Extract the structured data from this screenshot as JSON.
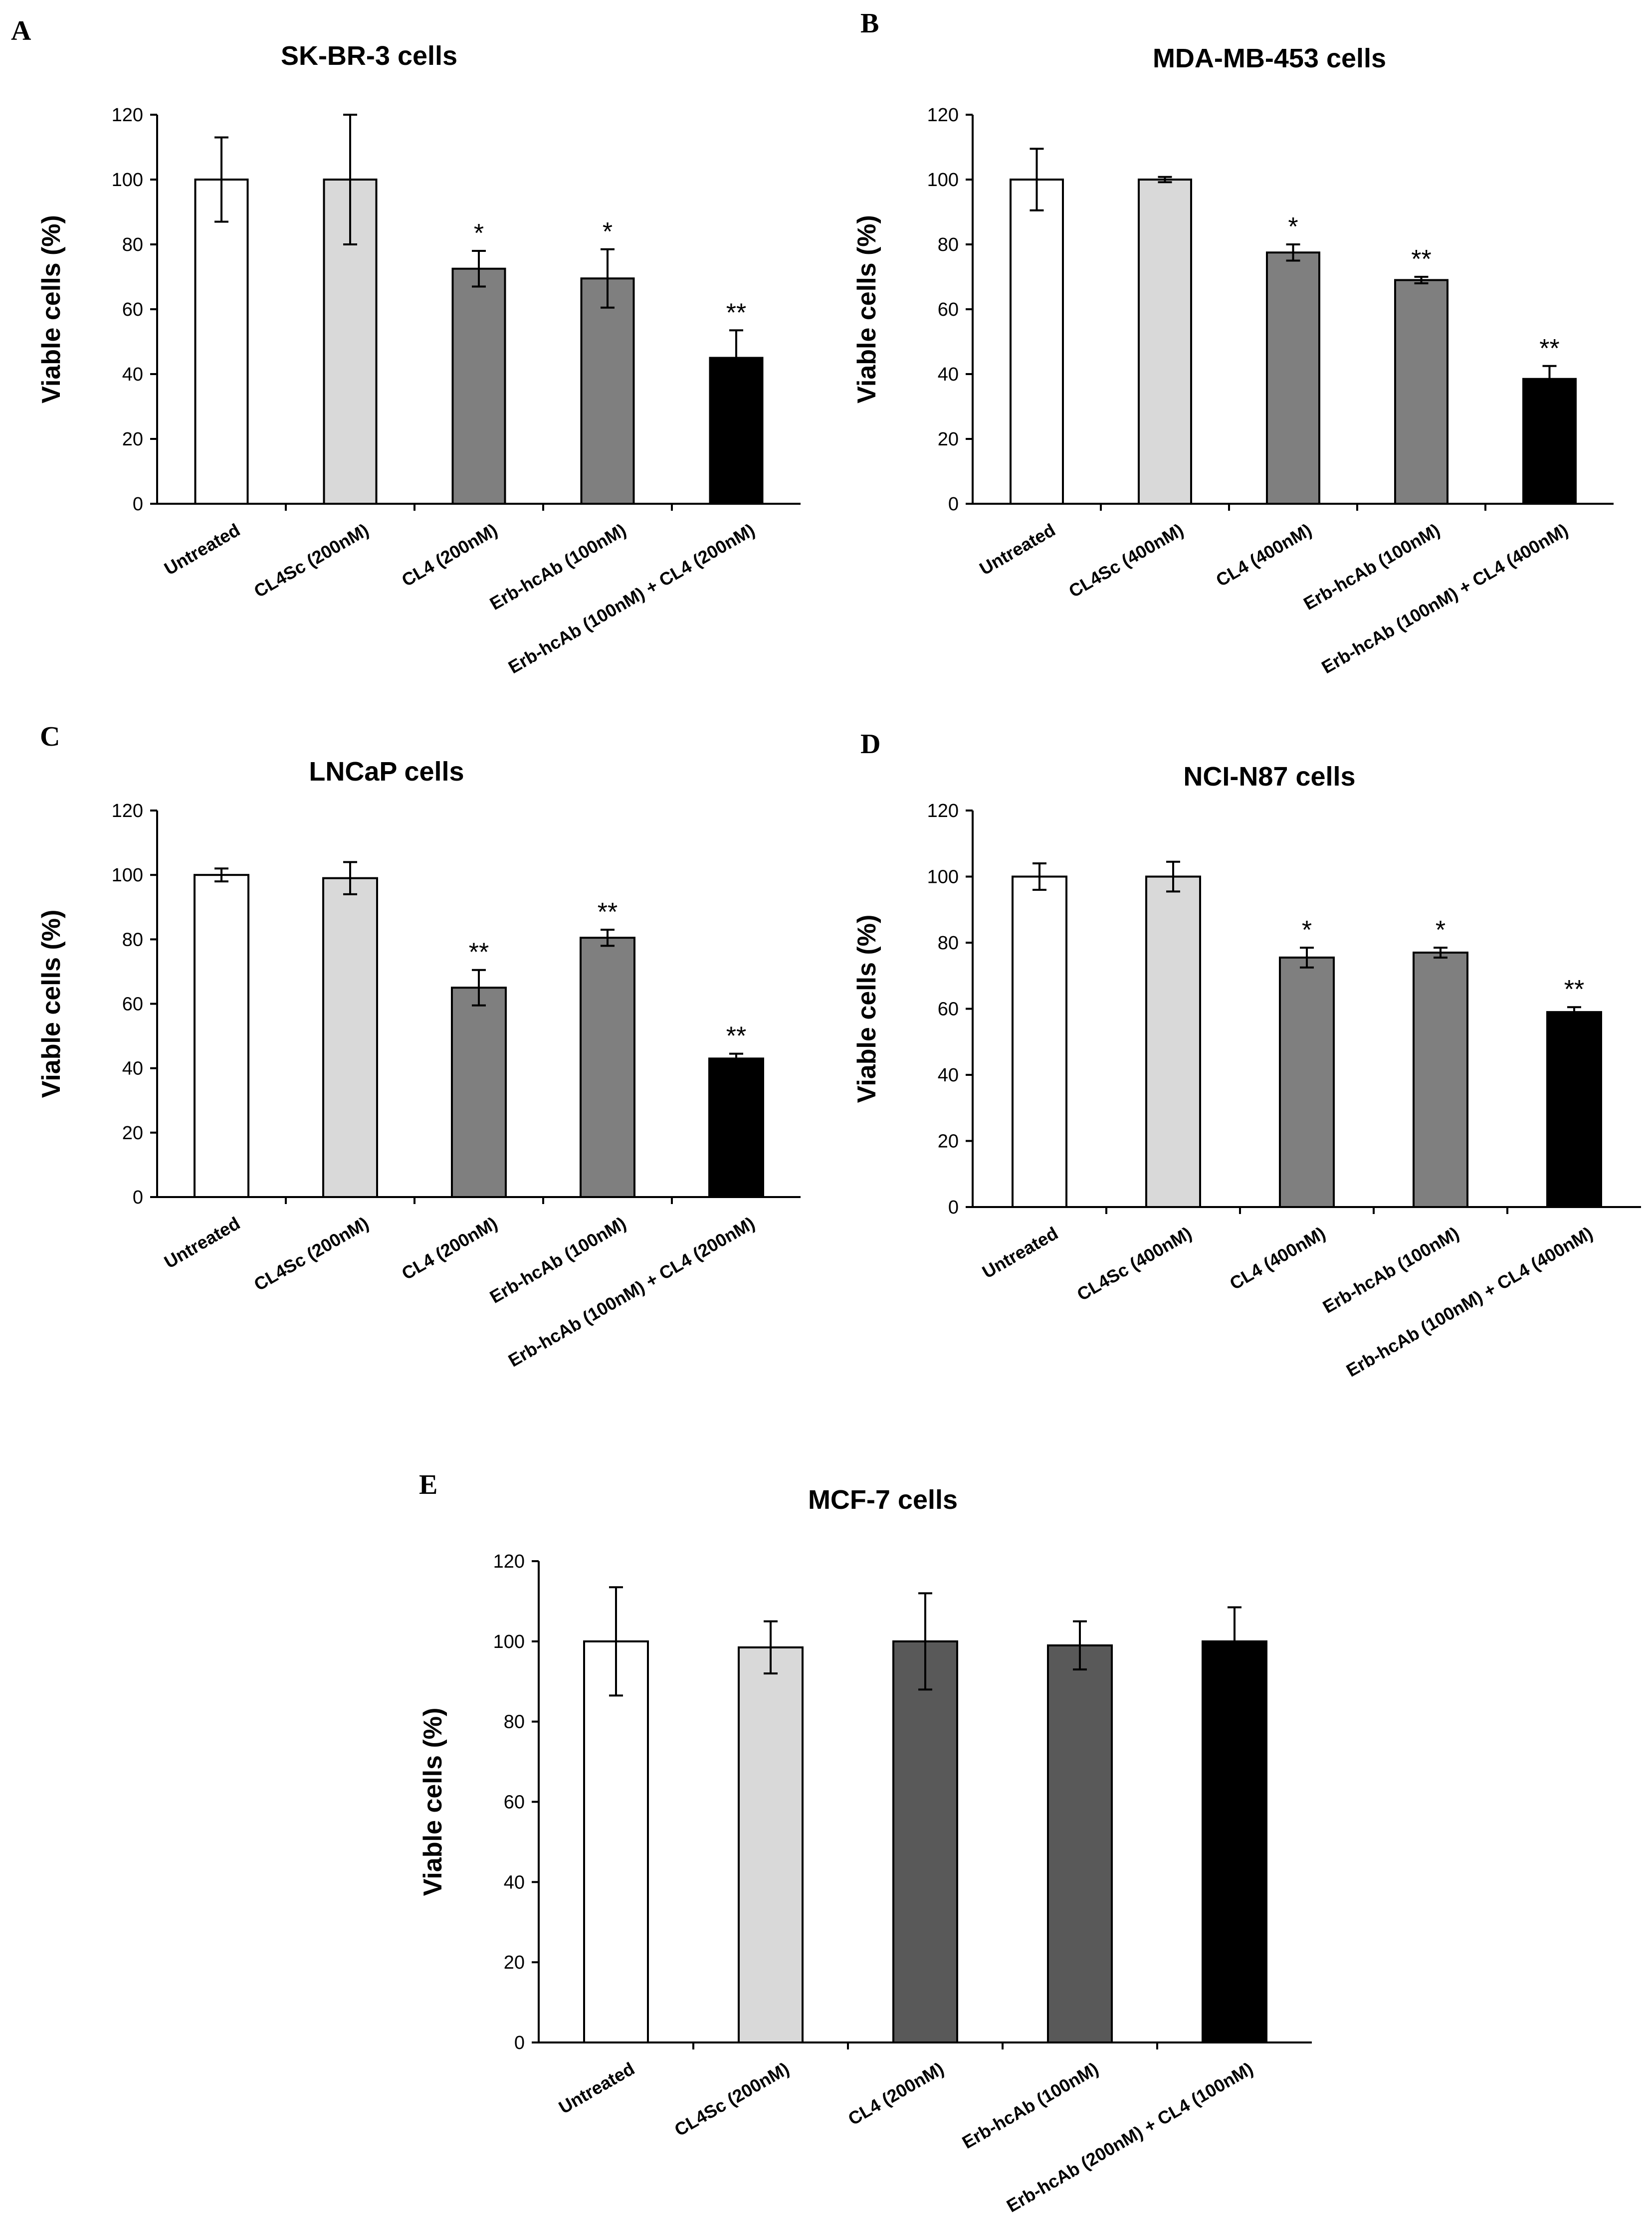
{
  "chart_data": [
    {
      "panel": "A",
      "type": "bar",
      "title": "SK-BR-3 cells",
      "ylabel": "Viable cells (%)",
      "xlabel": "",
      "ylim": [
        0,
        120
      ],
      "yticks": [
        0,
        20,
        40,
        60,
        80,
        100,
        120
      ],
      "categories": [
        "Untreated",
        "CL4Sc (200nM)",
        "CL4 (200nM)",
        "Erb-hcAb (100nM)",
        "Erb-hcAb (100nM) + CL4 (200nM)"
      ],
      "values": [
        100,
        100,
        72.5,
        69.5,
        45
      ],
      "errors": [
        13,
        20,
        5.5,
        9,
        8.5
      ],
      "significance": [
        "",
        "",
        "*",
        "*",
        "**"
      ],
      "colors": [
        "#ffffff",
        "#d9d9d9",
        "#7f7f7f",
        "#7f7f7f",
        "#000000"
      ]
    },
    {
      "panel": "B",
      "type": "bar",
      "title": "MDA-MB-453 cells",
      "ylabel": "Viable cells (%)",
      "xlabel": "",
      "ylim": [
        0,
        120
      ],
      "yticks": [
        0,
        20,
        40,
        60,
        80,
        100,
        120
      ],
      "categories": [
        "Untreated",
        "CL4Sc (400nM)",
        "CL4 (400nM)",
        "Erb-hcAb (100nM)",
        "Erb-hcAb (100nM) + CL4 (400nM)"
      ],
      "values": [
        100,
        100,
        77.5,
        69,
        38.5
      ],
      "errors": [
        9.5,
        0.8,
        2.5,
        1,
        4
      ],
      "significance": [
        "",
        "",
        "*",
        "**",
        "**"
      ],
      "colors": [
        "#ffffff",
        "#d9d9d9",
        "#7f7f7f",
        "#7f7f7f",
        "#000000"
      ]
    },
    {
      "panel": "C",
      "type": "bar",
      "title": "LNCaP cells",
      "ylabel": "Viable cells (%)",
      "xlabel": "",
      "ylim": [
        0,
        120
      ],
      "yticks": [
        0,
        20,
        40,
        60,
        80,
        100,
        120
      ],
      "categories": [
        "Untreated",
        "CL4Sc (200nM)",
        "CL4 (200nM)",
        "Erb-hcAb (100nM)",
        "Erb-hcAb (100nM) + CL4 (200nM)"
      ],
      "values": [
        100,
        99,
        65,
        80.5,
        43
      ],
      "errors": [
        2,
        5,
        5.5,
        2.5,
        1.5
      ],
      "significance": [
        "",
        "",
        "**",
        "**",
        "**"
      ],
      "colors": [
        "#ffffff",
        "#d9d9d9",
        "#7f7f7f",
        "#7f7f7f",
        "#000000"
      ]
    },
    {
      "panel": "D",
      "type": "bar",
      "title": "NCI-N87 cells",
      "ylabel": "Viable cells (%)",
      "xlabel": "",
      "ylim": [
        0,
        120
      ],
      "yticks": [
        0,
        20,
        40,
        60,
        80,
        100,
        120
      ],
      "categories": [
        "Untreated",
        "CL4Sc (400nM)",
        "CL4 (400nM)",
        "Erb-hcAb (100nM)",
        "Erb-hcAb (100nM) + CL4 (400nM)"
      ],
      "values": [
        100,
        100,
        75.5,
        77,
        59
      ],
      "errors": [
        4,
        4.5,
        3,
        1.5,
        1.5
      ],
      "significance": [
        "",
        "",
        "*",
        "*",
        "**"
      ],
      "colors": [
        "#ffffff",
        "#d9d9d9",
        "#7f7f7f",
        "#7f7f7f",
        "#000000"
      ]
    },
    {
      "panel": "E",
      "type": "bar",
      "title": "MCF-7 cells",
      "ylabel": "Viable cells (%)",
      "xlabel": "",
      "ylim": [
        0,
        120
      ],
      "yticks": [
        0,
        20,
        40,
        60,
        80,
        100,
        120
      ],
      "categories": [
        "Untreated",
        "CL4Sc (200nM)",
        "CL4 (200nM)",
        "Erb-hcAb (100nM)",
        "Erb-hcAb (200nM) + CL4 (100nM)"
      ],
      "values": [
        100,
        98.5,
        100,
        99,
        100
      ],
      "errors": [
        13.5,
        6.5,
        12,
        6,
        8.5
      ],
      "significance": [
        "",
        "",
        "",
        "",
        ""
      ],
      "colors": [
        "#ffffff",
        "#d9d9d9",
        "#595959",
        "#595959",
        "#000000"
      ]
    }
  ]
}
